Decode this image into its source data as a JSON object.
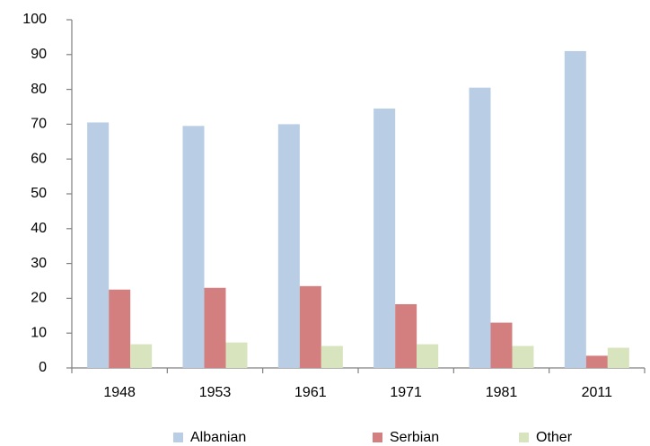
{
  "chart_data": {
    "type": "bar",
    "categories": [
      "1948",
      "1953",
      "1961",
      "1971",
      "1981",
      "2011"
    ],
    "series": [
      {
        "name": "Albanian",
        "color": "#b9cde5",
        "values": [
          70.5,
          69.5,
          70,
          74.5,
          80.5,
          91
        ]
      },
      {
        "name": "Serbian",
        "color": "#d47f7f",
        "values": [
          22.5,
          23,
          23.5,
          18.3,
          13,
          3.5
        ]
      },
      {
        "name": "Other",
        "color": "#d7e4bd",
        "values": [
          6.8,
          7.3,
          6.3,
          6.8,
          6.3,
          5.8
        ]
      }
    ],
    "ylim": [
      0,
      100
    ],
    "yticks": [
      0,
      10,
      20,
      30,
      40,
      50,
      60,
      70,
      80,
      90,
      100
    ],
    "grid": false,
    "legend": "bottom"
  }
}
